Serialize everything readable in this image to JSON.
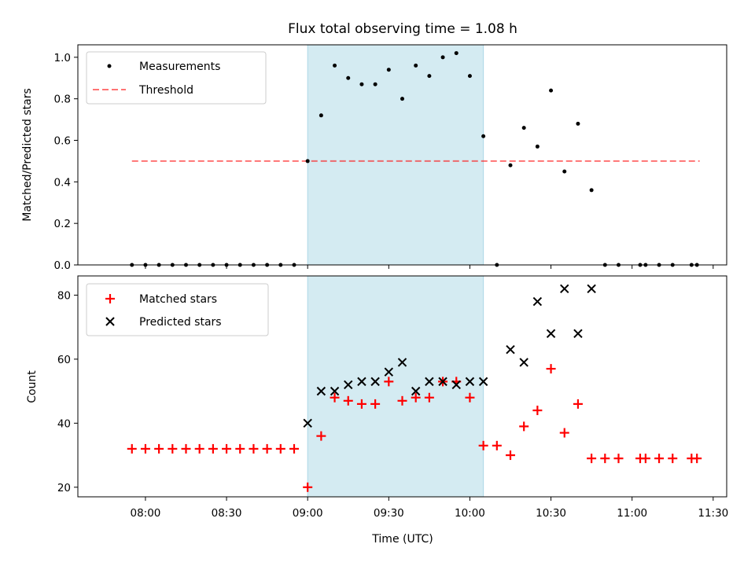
{
  "title": "Flux total observing time = 1.08 h",
  "colors": {
    "shade": "#add8e6",
    "measurement": "#000000",
    "threshold": "#ff0000",
    "matched": "#ff0000",
    "predicted": "#000000"
  },
  "chart_data": [
    {
      "type": "scatter",
      "ylabel": "Matched/Predicted stars",
      "ylim": [
        0,
        1.06
      ],
      "yticks": [
        0.0,
        0.2,
        0.4,
        0.6,
        0.8,
        1.0
      ],
      "ytick_labels": [
        "0.0",
        "0.2",
        "0.4",
        "0.6",
        "0.8",
        "1.0"
      ],
      "legend_position": "top-left",
      "shaded_span": [
        "09:00",
        "10:05"
      ],
      "series": [
        {
          "name": "Measurements",
          "marker": "dot",
          "x": [
            "07:55",
            "08:00",
            "08:05",
            "08:10",
            "08:15",
            "08:20",
            "08:25",
            "08:30",
            "08:35",
            "08:40",
            "08:45",
            "08:50",
            "08:55",
            "09:00",
            "09:05",
            "09:10",
            "09:15",
            "09:20",
            "09:25",
            "09:30",
            "09:35",
            "09:40",
            "09:45",
            "09:50",
            "09:55",
            "10:00",
            "10:05",
            "10:10",
            "10:15",
            "10:20",
            "10:25",
            "10:30",
            "10:35",
            "10:40",
            "10:45",
            "10:50",
            "10:55",
            "11:03",
            "11:05",
            "11:10",
            "11:15",
            "11:22",
            "11:24"
          ],
          "y": [
            0,
            0,
            0,
            0,
            0,
            0,
            0,
            0,
            0,
            0,
            0,
            0,
            0,
            0.5,
            0.72,
            0.96,
            0.9,
            0.87,
            0.87,
            0.94,
            0.8,
            0.96,
            0.91,
            1.0,
            1.02,
            0.91,
            0.62,
            0,
            0.48,
            0.66,
            0.57,
            0.84,
            0.45,
            0.68,
            0.36,
            0,
            0,
            0,
            0,
            0,
            0,
            0,
            0
          ]
        },
        {
          "name": "Threshold",
          "marker": "dashed-line",
          "x": [
            "07:55",
            "11:25"
          ],
          "y": [
            0.5,
            0.5
          ]
        }
      ]
    },
    {
      "type": "scatter",
      "ylabel": "Count",
      "xlabel": "Time (UTC)",
      "ylim": [
        17,
        86
      ],
      "yticks": [
        20,
        40,
        60,
        80
      ],
      "ytick_labels": [
        "20",
        "40",
        "60",
        "80"
      ],
      "xticks": [
        "08:00",
        "08:30",
        "09:00",
        "09:30",
        "10:00",
        "10:30",
        "11:00",
        "11:30"
      ],
      "xlim": [
        "07:35",
        "11:35"
      ],
      "legend_position": "top-left",
      "shaded_span": [
        "09:00",
        "10:05"
      ],
      "series": [
        {
          "name": "Matched stars",
          "marker": "plus",
          "x": [
            "07:55",
            "08:00",
            "08:05",
            "08:10",
            "08:15",
            "08:20",
            "08:25",
            "08:30",
            "08:35",
            "08:40",
            "08:45",
            "08:50",
            "08:55",
            "09:00",
            "09:05",
            "09:10",
            "09:15",
            "09:20",
            "09:25",
            "09:30",
            "09:35",
            "09:40",
            "09:45",
            "09:50",
            "09:55",
            "10:00",
            "10:05",
            "10:10",
            "10:15",
            "10:20",
            "10:25",
            "10:30",
            "10:35",
            "10:40",
            "10:45",
            "10:50",
            "10:55",
            "11:03",
            "11:05",
            "11:10",
            "11:15",
            "11:22",
            "11:24"
          ],
          "y": [
            32,
            32,
            32,
            32,
            32,
            32,
            32,
            32,
            32,
            32,
            32,
            32,
            32,
            20,
            36,
            48,
            47,
            46,
            46,
            53,
            47,
            48,
            48,
            53,
            53,
            48,
            33,
            33,
            30,
            39,
            44,
            57,
            37,
            46,
            29,
            29,
            29,
            29,
            29,
            29,
            29,
            29,
            29
          ]
        },
        {
          "name": "Predicted stars",
          "marker": "x",
          "x": [
            "09:00",
            "09:05",
            "09:10",
            "09:15",
            "09:20",
            "09:25",
            "09:30",
            "09:35",
            "09:40",
            "09:45",
            "09:50",
            "09:55",
            "10:00",
            "10:05",
            "10:15",
            "10:20",
            "10:25",
            "10:30",
            "10:35",
            "10:40",
            "10:45"
          ],
          "y": [
            40,
            50,
            50,
            52,
            53,
            53,
            56,
            59,
            50,
            53,
            53,
            52,
            53,
            53,
            63,
            59,
            78,
            68,
            82,
            68,
            82
          ]
        }
      ]
    }
  ]
}
